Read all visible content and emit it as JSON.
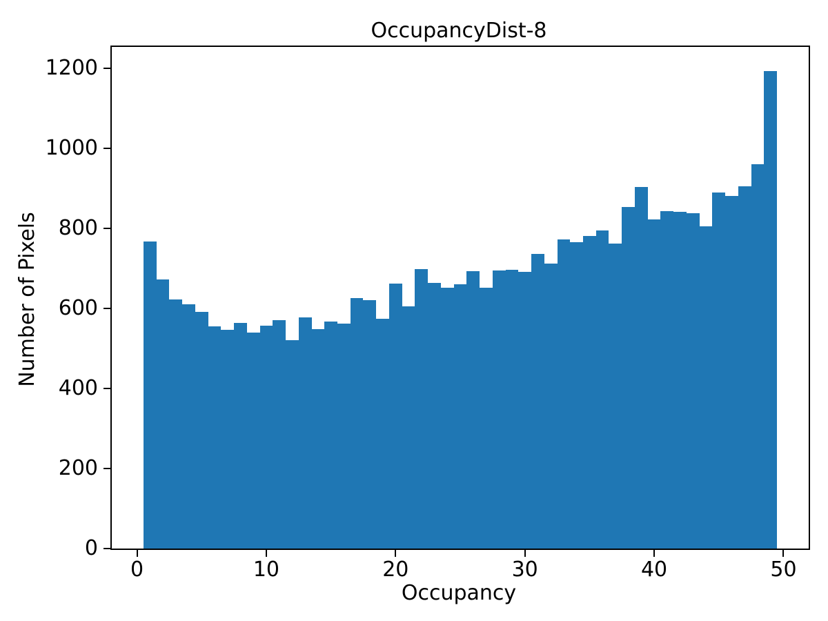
{
  "chart_data": {
    "type": "bar",
    "title": "OccupancyDist-8",
    "xlabel": "Occupancy",
    "ylabel": "Number of Pixels",
    "bar_color": "#1f77b4",
    "grid": false,
    "legend_position": "none",
    "bin_start": 0.5,
    "bin_width": 1,
    "x_centers": [
      1,
      2,
      3,
      4,
      5,
      6,
      7,
      8,
      9,
      10,
      11,
      12,
      13,
      14,
      15,
      16,
      17,
      18,
      19,
      20,
      21,
      22,
      23,
      24,
      25,
      26,
      27,
      28,
      29,
      30,
      31,
      32,
      33,
      34,
      35,
      36,
      37,
      38,
      39,
      40,
      41,
      42,
      43,
      44,
      45,
      46,
      47,
      48,
      49
    ],
    "values": [
      768,
      672,
      622,
      610,
      591,
      555,
      546,
      564,
      540,
      557,
      571,
      521,
      578,
      548,
      568,
      563,
      626,
      621,
      574,
      663,
      605,
      698,
      664,
      652,
      661,
      694,
      652,
      695,
      697,
      692,
      736,
      713,
      772,
      765,
      781,
      796,
      762,
      853,
      904,
      822,
      844,
      841,
      839,
      805,
      890,
      881,
      906,
      960,
      1193
    ],
    "xlim": [
      -1.95,
      51.95
    ],
    "ylim": [
      0,
      1254
    ],
    "xticks": [
      0,
      10,
      20,
      30,
      40,
      50
    ],
    "yticks": [
      0,
      200,
      400,
      600,
      800,
      1000,
      1200
    ]
  }
}
